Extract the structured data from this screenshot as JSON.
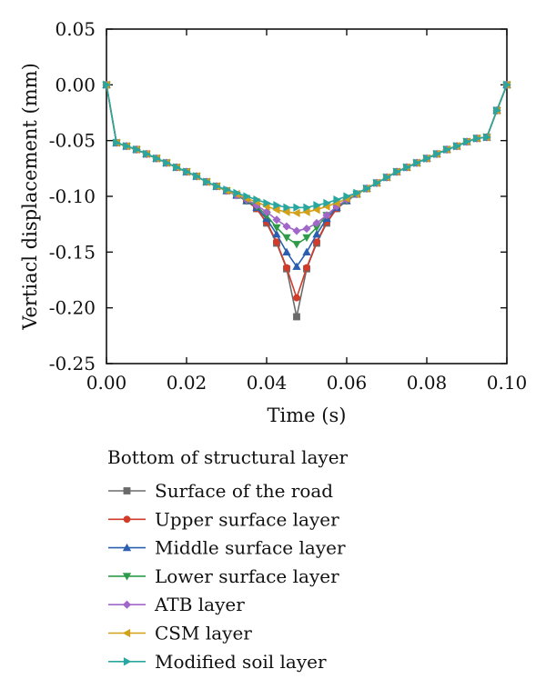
{
  "chart_data": {
    "type": "line",
    "xlabel": "Time (s)",
    "ylabel": "Vertiacl displacement (mm)",
    "xlim": [
      0.0,
      0.1
    ],
    "ylim": [
      -0.25,
      0.05
    ],
    "xticks": [
      "0.00",
      "0.02",
      "0.04",
      "0.06",
      "0.08",
      "0.10"
    ],
    "yticks": [
      "0.05",
      "0.00",
      "-0.05",
      "-0.10",
      "-0.15",
      "-0.20",
      "-0.25"
    ],
    "grid": false,
    "legend_title": "Bottom of structural layer",
    "legend_position": "bottom",
    "x": [
      0.0,
      0.0025,
      0.005,
      0.0075,
      0.01,
      0.0125,
      0.015,
      0.0175,
      0.02,
      0.0225,
      0.025,
      0.0275,
      0.03,
      0.0325,
      0.035,
      0.0375,
      0.04,
      0.0425,
      0.045,
      0.0475,
      0.05,
      0.0525,
      0.055,
      0.0575,
      0.06,
      0.0625,
      0.065,
      0.0675,
      0.07,
      0.0725,
      0.075,
      0.0775,
      0.08,
      0.0825,
      0.085,
      0.0875,
      0.09,
      0.0925,
      0.095,
      0.0975,
      0.1
    ],
    "series": [
      {
        "name": "Surface of the road",
        "color": "#6b6b6b",
        "marker": "square",
        "values": [
          0.0,
          -0.052,
          -0.055,
          -0.058,
          -0.062,
          -0.066,
          -0.07,
          -0.074,
          -0.078,
          -0.082,
          -0.087,
          -0.091,
          -0.095,
          -0.099,
          -0.104,
          -0.111,
          -0.124,
          -0.142,
          -0.165,
          -0.208,
          -0.165,
          -0.142,
          -0.124,
          -0.111,
          -0.104,
          -0.098,
          -0.093,
          -0.088,
          -0.083,
          -0.078,
          -0.074,
          -0.07,
          -0.066,
          -0.062,
          -0.058,
          -0.055,
          -0.051,
          -0.048,
          -0.047,
          -0.023,
          0.0
        ]
      },
      {
        "name": "Upper surface layer",
        "color": "#d03b2a",
        "marker": "circle",
        "values": [
          0.0,
          -0.052,
          -0.055,
          -0.058,
          -0.062,
          -0.066,
          -0.07,
          -0.074,
          -0.078,
          -0.082,
          -0.087,
          -0.091,
          -0.095,
          -0.099,
          -0.104,
          -0.111,
          -0.123,
          -0.141,
          -0.164,
          -0.191,
          -0.164,
          -0.141,
          -0.123,
          -0.111,
          -0.104,
          -0.098,
          -0.093,
          -0.088,
          -0.083,
          -0.078,
          -0.074,
          -0.07,
          -0.066,
          -0.062,
          -0.058,
          -0.055,
          -0.051,
          -0.048,
          -0.047,
          -0.023,
          0.0
        ]
      },
      {
        "name": "Middle surface layer",
        "color": "#2a5fb0",
        "marker": "triangle-up",
        "values": [
          0.0,
          -0.052,
          -0.055,
          -0.058,
          -0.062,
          -0.066,
          -0.07,
          -0.074,
          -0.078,
          -0.082,
          -0.087,
          -0.091,
          -0.095,
          -0.099,
          -0.104,
          -0.11,
          -0.12,
          -0.134,
          -0.15,
          -0.163,
          -0.15,
          -0.134,
          -0.12,
          -0.11,
          -0.104,
          -0.098,
          -0.093,
          -0.088,
          -0.083,
          -0.078,
          -0.074,
          -0.07,
          -0.066,
          -0.062,
          -0.058,
          -0.055,
          -0.051,
          -0.048,
          -0.047,
          -0.023,
          0.0
        ]
      },
      {
        "name": "Lower surface layer",
        "color": "#2e9b48",
        "marker": "triangle-down",
        "values": [
          0.0,
          -0.052,
          -0.055,
          -0.058,
          -0.062,
          -0.066,
          -0.07,
          -0.074,
          -0.078,
          -0.082,
          -0.087,
          -0.091,
          -0.095,
          -0.099,
          -0.104,
          -0.109,
          -0.117,
          -0.128,
          -0.137,
          -0.143,
          -0.137,
          -0.128,
          -0.117,
          -0.109,
          -0.104,
          -0.098,
          -0.093,
          -0.088,
          -0.083,
          -0.078,
          -0.074,
          -0.07,
          -0.066,
          -0.062,
          -0.058,
          -0.055,
          -0.051,
          -0.048,
          -0.047,
          -0.023,
          0.0
        ]
      },
      {
        "name": "ATB layer",
        "color": "#a066c8",
        "marker": "diamond",
        "values": [
          0.0,
          -0.052,
          -0.055,
          -0.058,
          -0.062,
          -0.066,
          -0.07,
          -0.074,
          -0.078,
          -0.082,
          -0.087,
          -0.091,
          -0.095,
          -0.099,
          -0.103,
          -0.108,
          -0.114,
          -0.121,
          -0.127,
          -0.131,
          -0.129,
          -0.124,
          -0.117,
          -0.109,
          -0.103,
          -0.098,
          -0.093,
          -0.088,
          -0.083,
          -0.078,
          -0.074,
          -0.07,
          -0.066,
          -0.062,
          -0.058,
          -0.055,
          -0.051,
          -0.048,
          -0.047,
          -0.023,
          0.0
        ]
      },
      {
        "name": "CSM layer",
        "color": "#d4a017",
        "marker": "triangle-left",
        "values": [
          0.0,
          -0.052,
          -0.055,
          -0.058,
          -0.062,
          -0.066,
          -0.07,
          -0.074,
          -0.078,
          -0.082,
          -0.087,
          -0.091,
          -0.095,
          -0.098,
          -0.102,
          -0.105,
          -0.109,
          -0.112,
          -0.114,
          -0.115,
          -0.114,
          -0.112,
          -0.109,
          -0.106,
          -0.102,
          -0.098,
          -0.093,
          -0.088,
          -0.083,
          -0.078,
          -0.074,
          -0.07,
          -0.066,
          -0.062,
          -0.058,
          -0.055,
          -0.051,
          -0.048,
          -0.047,
          -0.023,
          0.0
        ]
      },
      {
        "name": "Modified soil layer",
        "color": "#2aa6a0",
        "marker": "triangle-right",
        "values": [
          0.0,
          -0.052,
          -0.055,
          -0.058,
          -0.062,
          -0.066,
          -0.07,
          -0.074,
          -0.078,
          -0.082,
          -0.087,
          -0.091,
          -0.094,
          -0.097,
          -0.1,
          -0.103,
          -0.106,
          -0.108,
          -0.11,
          -0.11,
          -0.11,
          -0.108,
          -0.106,
          -0.103,
          -0.1,
          -0.097,
          -0.093,
          -0.088,
          -0.083,
          -0.078,
          -0.074,
          -0.07,
          -0.066,
          -0.062,
          -0.058,
          -0.055,
          -0.051,
          -0.048,
          -0.047,
          -0.023,
          0.0
        ]
      }
    ]
  }
}
